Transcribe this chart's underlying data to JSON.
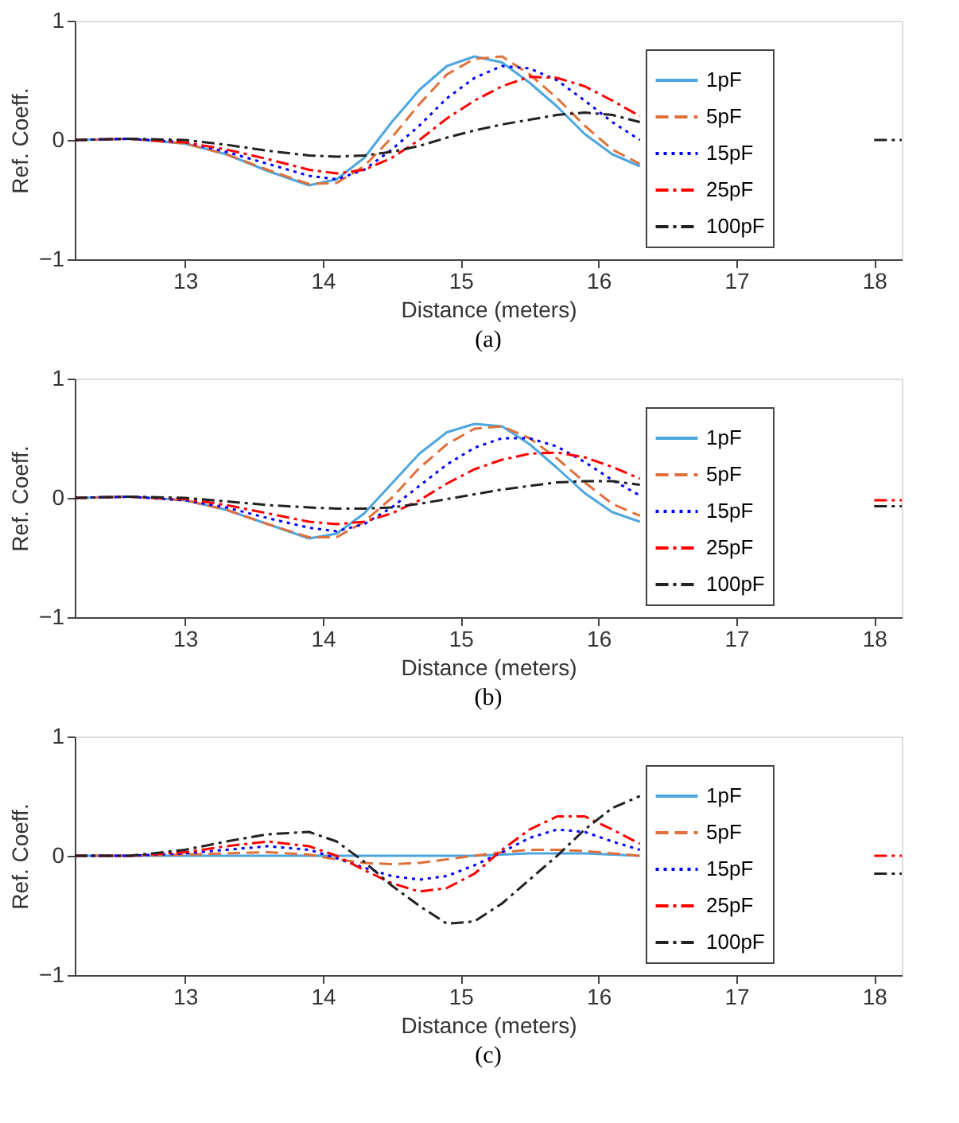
{
  "chart_data": [
    {
      "type": "line",
      "xlabel": "Distance (meters)",
      "ylabel": "Ref. Coeff.",
      "annotations": [
        "(a)"
      ],
      "xlim": [
        12.2,
        18.2
      ],
      "ylim": [
        -1,
        1
      ],
      "xticks": [
        13,
        14,
        15,
        16,
        17,
        18
      ],
      "yticks": [
        -1,
        0,
        1
      ],
      "grid": false,
      "legend": "right",
      "x": [
        12.2,
        12.6,
        13.0,
        13.3,
        13.6,
        13.9,
        14.1,
        14.3,
        14.5,
        14.7,
        14.9,
        15.1,
        15.3,
        15.5,
        15.7,
        15.9,
        16.1,
        16.3,
        17.0,
        18.0,
        18.2
      ],
      "series": [
        {
          "name": "1pF",
          "color": "#4da6df",
          "line_style": "solid",
          "values": [
            0,
            0.01,
            -0.03,
            -0.12,
            -0.26,
            -0.38,
            -0.33,
            -0.15,
            0.15,
            0.42,
            0.62,
            0.7,
            0.65,
            0.48,
            0.28,
            0.05,
            -0.12,
            -0.22,
            null,
            null,
            null
          ]
        },
        {
          "name": "5pF",
          "color": "#e0703a",
          "line_style": "dashed",
          "values": [
            0,
            0.01,
            -0.03,
            -0.12,
            -0.25,
            -0.37,
            -0.36,
            -0.22,
            0.02,
            0.3,
            0.55,
            0.68,
            0.7,
            0.55,
            0.35,
            0.12,
            -0.08,
            -0.2,
            null,
            null,
            null
          ]
        },
        {
          "name": "15pF",
          "color": "#0000ff",
          "line_style": "dotted",
          "values": [
            0,
            0.01,
            -0.02,
            -0.1,
            -0.2,
            -0.3,
            -0.33,
            -0.25,
            -0.08,
            0.12,
            0.35,
            0.52,
            0.62,
            0.6,
            0.5,
            0.33,
            0.15,
            0.0,
            null,
            null,
            null
          ]
        },
        {
          "name": "25pF",
          "color": "#ff0000",
          "line_style": "dashdot",
          "values": [
            0,
            0.01,
            -0.02,
            -0.08,
            -0.16,
            -0.25,
            -0.28,
            -0.25,
            -0.15,
            0.0,
            0.18,
            0.33,
            0.45,
            0.53,
            0.52,
            0.45,
            0.33,
            0.2,
            null,
            null,
            null
          ]
        },
        {
          "name": "100pF",
          "color": "#222222",
          "line_style": "dashdot",
          "values": [
            0,
            0.01,
            0,
            -0.04,
            -0.09,
            -0.13,
            -0.14,
            -0.13,
            -0.1,
            -0.05,
            0.02,
            0.08,
            0.13,
            0.17,
            0.21,
            0.23,
            0.21,
            0.15,
            null,
            0,
            0
          ]
        }
      ]
    },
    {
      "type": "line",
      "xlabel": "Distance (meters)",
      "ylabel": "Ref. Coeff.",
      "annotations": [
        "(b)"
      ],
      "xlim": [
        12.2,
        18.2
      ],
      "ylim": [
        -1,
        1
      ],
      "xticks": [
        13,
        14,
        15,
        16,
        17,
        18
      ],
      "yticks": [
        -1,
        0,
        1
      ],
      "grid": false,
      "legend": "right",
      "x": [
        12.2,
        12.6,
        13.0,
        13.3,
        13.6,
        13.9,
        14.1,
        14.3,
        14.5,
        14.7,
        14.9,
        15.1,
        15.3,
        15.5,
        15.7,
        15.9,
        16.1,
        16.3,
        17.0,
        18.0,
        18.2
      ],
      "series": [
        {
          "name": "1pF",
          "color": "#4da6df",
          "line_style": "solid",
          "values": [
            0,
            0.01,
            -0.02,
            -0.1,
            -0.22,
            -0.34,
            -0.3,
            -0.13,
            0.12,
            0.37,
            0.55,
            0.62,
            0.6,
            0.45,
            0.25,
            0.04,
            -0.12,
            -0.2,
            null,
            null,
            null
          ]
        },
        {
          "name": "5pF",
          "color": "#e0703a",
          "line_style": "dashed",
          "values": [
            0,
            0.01,
            -0.02,
            -0.1,
            -0.22,
            -0.33,
            -0.33,
            -0.2,
            0.0,
            0.25,
            0.45,
            0.58,
            0.6,
            0.5,
            0.33,
            0.13,
            -0.05,
            -0.15,
            null,
            null,
            null
          ]
        },
        {
          "name": "15pF",
          "color": "#0000ff",
          "line_style": "dotted",
          "values": [
            0,
            0.01,
            -0.02,
            -0.08,
            -0.17,
            -0.25,
            -0.28,
            -0.22,
            -0.08,
            0.1,
            0.28,
            0.42,
            0.5,
            0.5,
            0.43,
            0.3,
            0.15,
            0.02,
            null,
            null,
            null
          ]
        },
        {
          "name": "25pF",
          "color": "#ff0000",
          "line_style": "dashdot",
          "values": [
            0,
            0.01,
            -0.01,
            -0.06,
            -0.13,
            -0.2,
            -0.22,
            -0.2,
            -0.13,
            -0.02,
            0.12,
            0.24,
            0.32,
            0.37,
            0.38,
            0.34,
            0.26,
            0.16,
            null,
            -0.02,
            -0.02
          ]
        },
        {
          "name": "100pF",
          "color": "#222222",
          "line_style": "dashdot",
          "values": [
            0,
            0.01,
            0,
            -0.03,
            -0.06,
            -0.08,
            -0.09,
            -0.09,
            -0.08,
            -0.05,
            -0.01,
            0.03,
            0.07,
            0.1,
            0.13,
            0.14,
            0.14,
            0.11,
            null,
            -0.07,
            -0.07
          ]
        }
      ]
    },
    {
      "type": "line",
      "xlabel": "Distance (meters)",
      "ylabel": "Ref. Coeff.",
      "annotations": [
        "(c)"
      ],
      "xlim": [
        12.2,
        18.2
      ],
      "ylim": [
        -1,
        1
      ],
      "xticks": [
        13,
        14,
        15,
        16,
        17,
        18
      ],
      "yticks": [
        -1,
        0,
        1
      ],
      "grid": false,
      "legend": "right",
      "x": [
        12.2,
        12.6,
        13.0,
        13.3,
        13.6,
        13.9,
        14.1,
        14.3,
        14.5,
        14.7,
        14.9,
        15.1,
        15.3,
        15.5,
        15.7,
        15.9,
        16.1,
        16.3,
        17.0,
        18.0,
        18.2
      ],
      "series": [
        {
          "name": "1pF",
          "color": "#4da6df",
          "line_style": "solid",
          "values": [
            0,
            0,
            0,
            0,
            0,
            0,
            0,
            0,
            0,
            0,
            0,
            0,
            0.01,
            0.02,
            0.02,
            0.02,
            0.01,
            0,
            null,
            null,
            null
          ]
        },
        {
          "name": "5pF",
          "color": "#e0703a",
          "line_style": "dashed",
          "values": [
            0,
            0,
            0.01,
            0.02,
            0.03,
            0.01,
            -0.03,
            -0.06,
            -0.07,
            -0.06,
            -0.03,
            0,
            0.03,
            0.05,
            0.05,
            0.04,
            0.02,
            0,
            null,
            null,
            null
          ]
        },
        {
          "name": "15pF",
          "color": "#0000ff",
          "line_style": "dotted",
          "values": [
            0,
            0,
            0.02,
            0.05,
            0.08,
            0.05,
            -0.02,
            -0.1,
            -0.17,
            -0.2,
            -0.17,
            -0.08,
            0.03,
            0.15,
            0.22,
            0.2,
            0.12,
            0.05,
            null,
            null,
            null
          ]
        },
        {
          "name": "25pF",
          "color": "#ff0000",
          "line_style": "dashdot",
          "values": [
            0,
            0,
            0.03,
            0.08,
            0.12,
            0.08,
            0,
            -0.12,
            -0.23,
            -0.3,
            -0.27,
            -0.15,
            0.05,
            0.22,
            0.33,
            0.33,
            0.22,
            0.1,
            null,
            0,
            0
          ]
        },
        {
          "name": "100pF",
          "color": "#222222",
          "line_style": "dashdot",
          "values": [
            0,
            0,
            0.05,
            0.12,
            0.18,
            0.2,
            0.12,
            -0.05,
            -0.25,
            -0.42,
            -0.57,
            -0.55,
            -0.4,
            -0.2,
            0,
            0.22,
            0.4,
            0.5,
            null,
            -0.15,
            -0.15
          ]
        }
      ]
    }
  ]
}
